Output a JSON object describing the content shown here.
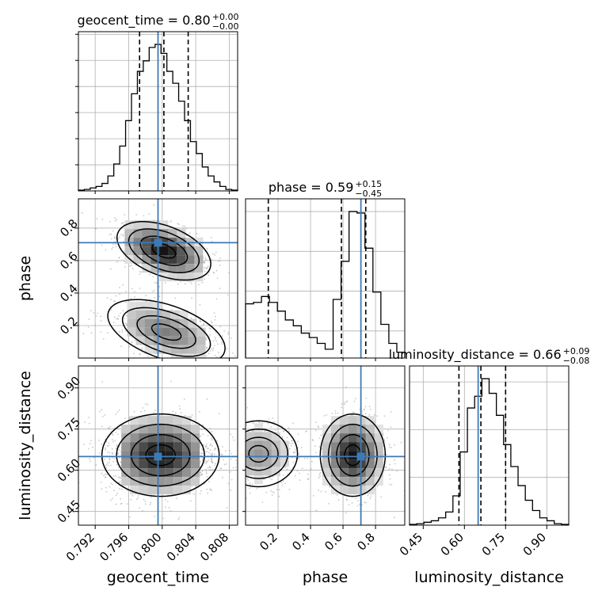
{
  "chart_data": {
    "type": "corner",
    "parameters": [
      "geocent_time",
      "phase",
      "luminosity_distance"
    ],
    "axis_labels": [
      "geocent_time",
      "phase",
      "luminosity_distance"
    ],
    "ranges": {
      "geocent_time": [
        0.79,
        0.809
      ],
      "phase": [
        0.0,
        0.98
      ],
      "luminosity_distance": [
        0.4,
        0.98
      ]
    },
    "ticks": {
      "geocent_time": {
        "values": [
          0.792,
          0.796,
          0.8,
          0.804,
          0.808
        ],
        "labels": [
          "0.792",
          "0.796",
          "0.800",
          "0.804",
          "0.808"
        ]
      },
      "phase": {
        "values": [
          0.2,
          0.4,
          0.6,
          0.8
        ],
        "labels": [
          "0.2",
          "0.4",
          "0.6",
          "0.8"
        ]
      },
      "luminosity_distance": {
        "values": [
          0.45,
          0.6,
          0.75,
          0.9
        ],
        "labels": [
          "0.45",
          "0.60",
          "0.75",
          "0.90"
        ]
      }
    },
    "titles": [
      {
        "parameter": "geocent_time",
        "text": "geocent_time = 0.80",
        "plus": "+0.00",
        "minus": "−0.00"
      },
      {
        "parameter": "phase",
        "text": "phase = 0.59",
        "plus": "+0.15",
        "minus": "−0.45"
      },
      {
        "parameter": "luminosity_distance",
        "text": "luminosity_distance = 0.66",
        "plus": "+0.09",
        "minus": "−0.08"
      }
    ],
    "truths": {
      "geocent_time": 0.7995,
      "phase": 0.71,
      "luminosity_distance": 0.65
    },
    "quantiles": {
      "geocent_time": [
        0.7973,
        0.8002,
        0.8031
      ],
      "phase": [
        0.14,
        0.59,
        0.74
      ],
      "luminosity_distance": [
        0.58,
        0.66,
        0.75
      ]
    },
    "histograms": {
      "geocent_time": {
        "edges": [
          0.79,
          0.809
        ],
        "counts": [
          0.5,
          1,
          2,
          3,
          5,
          10,
          18,
          30,
          47,
          65,
          80,
          87,
          96,
          98,
          92,
          80,
          72,
          60,
          47,
          33,
          25,
          16,
          10,
          6,
          3,
          1,
          0.5
        ]
      },
      "phase": {
        "edges": [
          0.0,
          0.98
        ],
        "counts": [
          37,
          38,
          42,
          38,
          32,
          26,
          22,
          17,
          14,
          10,
          6,
          40,
          66,
          100,
          99,
          75,
          45,
          23,
          10,
          4
        ]
      },
      "luminosity_distance": {
        "edges": [
          0.4,
          0.98
        ],
        "counts": [
          0.5,
          1,
          2,
          3,
          5,
          9,
          20,
          50,
          80,
          88,
          100,
          90,
          75,
          55,
          40,
          27,
          17,
          10,
          5,
          3,
          1,
          0.5
        ]
      }
    },
    "grid": true
  }
}
